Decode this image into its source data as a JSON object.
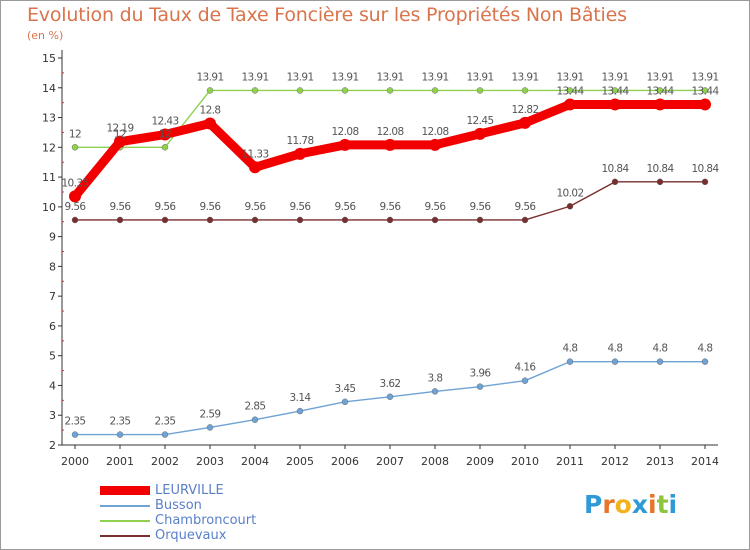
{
  "header": {
    "title": "Evolution du Taux de Taxe Foncière sur les Propriétés Non Bâties",
    "subtitle": "(en %)"
  },
  "brand": {
    "text": "Proxiti",
    "letters": [
      "P",
      "r",
      "o",
      "x",
      "i",
      "t",
      "i"
    ],
    "colors": [
      "#2e9ad6",
      "#e8742a",
      "#f2b321",
      "#2e9ad6",
      "#e8742a",
      "#8cc63f",
      "#2e9ad6"
    ]
  },
  "chart_data": {
    "type": "line",
    "title": "Evolution du Taux de Taxe Foncière sur les Propriétés Non Bâties",
    "ylabel": "(en %)",
    "xlabel": "",
    "x": [
      "2000",
      "2001",
      "2002",
      "2003",
      "2004",
      "2005",
      "2006",
      "2007",
      "2008",
      "2009",
      "2010",
      "2011",
      "2012",
      "2013",
      "2014"
    ],
    "ylim": [
      2,
      15
    ],
    "yticks": [
      "2",
      "3",
      "4",
      "5",
      "6",
      "7",
      "8",
      "9",
      "10",
      "11",
      "12",
      "13",
      "14",
      "15"
    ],
    "grid": false,
    "legend_position": "bottom-left",
    "series": [
      {
        "name": "LEURVILLE",
        "color": "#f20000",
        "values": [
          10.35,
          12.19,
          12.43,
          12.8,
          11.33,
          11.78,
          12.08,
          12.08,
          12.08,
          12.45,
          12.82,
          13.44,
          13.44,
          13.44,
          13.44
        ],
        "labels": [
          "10.35",
          "12.19",
          "12.43",
          "12.8",
          "11.33",
          "11.78",
          "12.08",
          "12.08",
          "12.08",
          "12.45",
          "12.82",
          "13.44",
          "13.44",
          "13.44",
          "13.44"
        ]
      },
      {
        "name": "Busson",
        "color": "#6fa3d4",
        "values": [
          2.35,
          2.35,
          2.35,
          2.59,
          2.85,
          3.14,
          3.45,
          3.62,
          3.8,
          3.96,
          4.16,
          4.8,
          4.8,
          4.8,
          4.8
        ],
        "labels": [
          "2.35",
          "2.35",
          "2.35",
          "2.59",
          "2.85",
          "3.14",
          "3.45",
          "3.62",
          "3.8",
          "3.96",
          "4.16",
          "4.8",
          "4.8",
          "4.8",
          "4.8"
        ]
      },
      {
        "name": "Chambroncourt",
        "color": "#8fd14f",
        "values": [
          12,
          12,
          12,
          13.91,
          13.91,
          13.91,
          13.91,
          13.91,
          13.91,
          13.91,
          13.91,
          13.91,
          13.91,
          13.91,
          13.91
        ],
        "labels": [
          "12",
          "12",
          "12",
          "13.91",
          "13.91",
          "13.91",
          "13.91",
          "13.91",
          "13.91",
          "13.91",
          "13.91",
          "13.91",
          "13.91",
          "13.91",
          "13.91"
        ]
      },
      {
        "name": "Orquevaux",
        "color": "#7a2e2e",
        "values": [
          9.56,
          9.56,
          9.56,
          9.56,
          9.56,
          9.56,
          9.56,
          9.56,
          9.56,
          9.56,
          9.56,
          10.02,
          10.84,
          10.84,
          10.84
        ],
        "labels": [
          "9.56",
          "9.56",
          "9.56",
          "9.56",
          "9.56",
          "9.56",
          "9.56",
          "9.56",
          "9.56",
          "9.56",
          "9.56",
          "10.02",
          "10.84",
          "10.84",
          "10.84"
        ]
      }
    ]
  }
}
